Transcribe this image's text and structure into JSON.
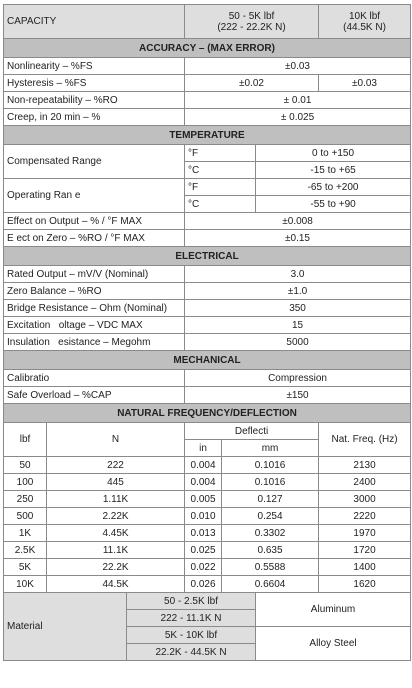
{
  "header": {
    "label": "CAPACITY",
    "col1": "50 - 5K lbf",
    "col1_sub": "(222 - 22.2K N)",
    "col2": "10K lbf",
    "col2_sub": "(44.5K N)"
  },
  "accuracy": {
    "title": "ACCURACY – (MAX ERROR)",
    "nonlinearity_label": "Nonlinearity – %FS",
    "nonlinearity_value": "±0.03",
    "hysteresis_label": "Hysteresis – %FS",
    "hysteresis_value_1": "±0.02",
    "hysteresis_value_2": "±0.03",
    "nonrepeat_label": "Non-repeatability – %RO",
    "nonrepeat_value": "± 0.01",
    "creep_label": "Creep, in 20 min – %",
    "creep_value": "± 0.025"
  },
  "temperature": {
    "title": "TEMPERATURE",
    "comp_label": "Compensated Range",
    "comp_unit_f": "°F",
    "comp_value_f": "0 to +150",
    "comp_unit_c": "°C",
    "comp_value_c": "-15 to +65",
    "op_label": "Operating Ran e",
    "op_unit_f": "°F",
    "op_value_f": "-65 to +200",
    "op_unit_c": "°C",
    "op_value_c": "-55 to +90",
    "effect_output_label": "Effect on Output – % / °F MAX",
    "effect_output_value": "±0.008",
    "effect_zero_label": "E ect on Zero – %RO / °F MAX",
    "effect_zero_value": "±0.15"
  },
  "electrical": {
    "title": "ELECTRICAL",
    "rows": [
      {
        "label": "Rated Output – mV/V (Nominal)",
        "value": "3.0"
      },
      {
        "label": "Zero Balance – %RO",
        "value": "±1.0"
      },
      {
        "label": "Bridge Resistance – Ohm (Nominal)",
        "value": "350"
      },
      {
        "label": "Excitation   oltage – VDC MAX",
        "value": "15"
      },
      {
        "label": "Insulation   esistance – Megohm",
        "value": "5000"
      }
    ]
  },
  "mechanical": {
    "title": "MECHANICAL",
    "rows": [
      {
        "label": "Calibratio",
        "value": "Compression"
      },
      {
        "label": "Safe Overload – %CAP",
        "value": "±150"
      }
    ]
  },
  "frequency": {
    "title": "NATURAL FREQUENCY/DEFLECTION",
    "col_lbf": "lbf",
    "col_n": "N",
    "col_deflection": "Deflecti",
    "col_in": "in",
    "col_mm": "mm",
    "col_freq": "Nat. Freq. (Hz)",
    "rows": [
      {
        "lbf": "50",
        "n": "222",
        "in": "0.004",
        "mm": "0.1016",
        "hz": "2130"
      },
      {
        "lbf": "100",
        "n": "445",
        "in": "0.004",
        "mm": "0.1016",
        "hz": "2400"
      },
      {
        "lbf": "250",
        "n": "1.11K",
        "in": "0.005",
        "mm": "0.127",
        "hz": "3000"
      },
      {
        "lbf": "500",
        "n": "2.22K",
        "in": "0.010",
        "mm": "0.254",
        "hz": "2220"
      },
      {
        "lbf": "1K",
        "n": "4.45K",
        "in": "0.013",
        "mm": "0.3302",
        "hz": "1970"
      },
      {
        "lbf": "2.5K",
        "n": "11.1K",
        "in": "0.025",
        "mm": "0.635",
        "hz": "1720"
      },
      {
        "lbf": "5K",
        "n": "22.2K",
        "in": "0.022",
        "mm": "0.5588",
        "hz": "1400"
      },
      {
        "lbf": "10K",
        "n": "44.5K",
        "in": "0.026",
        "mm": "0.6604",
        "hz": "1620"
      }
    ]
  },
  "material": {
    "label": "Material",
    "r1_range": "50 - 2.5K lbf",
    "r2_range": "222 - 11.1K N",
    "aluminum": "Aluminum",
    "r3_range": "5K - 10K lbf",
    "r4_range": "22.2K - 44.5K N",
    "alloy_steel": "Alloy Steel"
  }
}
